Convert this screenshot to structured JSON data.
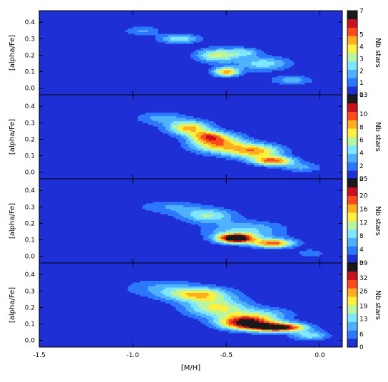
{
  "chart_data": {
    "type": "contour",
    "xlabel": "[M/H]",
    "ylabel": "[alpha/Fe]",
    "colorbar_label": "Nb stars",
    "xlim": [
      -1.5,
      0.12
    ],
    "ylim": [
      -0.04,
      0.47
    ],
    "xticks": [
      "-1.5",
      "-1.0",
      "-0.5",
      "0.0"
    ],
    "xtick_values": [
      -1.5,
      -1.0,
      -0.5,
      0.0
    ],
    "yticks": [
      "0.0",
      "0.1",
      "0.2",
      "0.3",
      "0.4"
    ],
    "ytick_values": [
      0.0,
      0.1,
      0.2,
      0.3,
      0.4
    ],
    "panels": [
      {
        "colorbar_ticks": [
          "7",
          "5",
          "4",
          "3",
          "2",
          "1",
          "0"
        ],
        "colorbar_tick_values": [
          7,
          5,
          4,
          3,
          2,
          1,
          0
        ],
        "colorbar_max": 7,
        "components": [
          {
            "mh": -0.95,
            "af": 0.35,
            "smh": 0.07,
            "saf": 0.02,
            "amp": 1.5
          },
          {
            "mh": -0.75,
            "af": 0.3,
            "smh": 0.08,
            "saf": 0.02,
            "amp": 2.5
          },
          {
            "mh": -0.55,
            "af": 0.2,
            "smh": 0.08,
            "saf": 0.03,
            "amp": 3.5
          },
          {
            "mh": -0.5,
            "af": 0.1,
            "smh": 0.05,
            "saf": 0.02,
            "amp": 4.5
          },
          {
            "mh": -0.3,
            "af": 0.15,
            "smh": 0.1,
            "saf": 0.03,
            "amp": 2.5
          },
          {
            "mh": -0.15,
            "af": 0.05,
            "smh": 0.08,
            "saf": 0.02,
            "amp": 1.8
          },
          {
            "mh": -0.4,
            "af": 0.22,
            "smh": 0.06,
            "saf": 0.02,
            "amp": 2.0
          }
        ]
      },
      {
        "colorbar_ticks": [
          "13",
          "10",
          "8",
          "6",
          "4",
          "2",
          "0"
        ],
        "colorbar_tick_values": [
          13,
          10,
          8,
          6,
          4,
          2,
          0
        ],
        "colorbar_max": 13,
        "components": [
          {
            "mh": -0.85,
            "af": 0.33,
            "smh": 0.1,
            "saf": 0.03,
            "amp": 3.0
          },
          {
            "mh": -0.7,
            "af": 0.27,
            "smh": 0.08,
            "saf": 0.03,
            "amp": 8.0
          },
          {
            "mh": -0.55,
            "af": 0.18,
            "smh": 0.1,
            "saf": 0.04,
            "amp": 9.0
          },
          {
            "mh": -0.35,
            "af": 0.13,
            "smh": 0.1,
            "saf": 0.03,
            "amp": 8.5
          },
          {
            "mh": -0.25,
            "af": 0.07,
            "smh": 0.08,
            "saf": 0.02,
            "amp": 9.5
          },
          {
            "mh": -0.1,
            "af": 0.03,
            "smh": 0.08,
            "saf": 0.02,
            "amp": 3.0
          },
          {
            "mh": -0.6,
            "af": 0.22,
            "smh": 0.06,
            "saf": 0.02,
            "amp": 5.0
          }
        ]
      },
      {
        "colorbar_ticks": [
          "25",
          "20",
          "16",
          "12",
          "8",
          "4",
          "0"
        ],
        "colorbar_tick_values": [
          25,
          20,
          16,
          12,
          8,
          4,
          0
        ],
        "colorbar_max": 25,
        "components": [
          {
            "mh": -0.8,
            "af": 0.3,
            "smh": 0.12,
            "saf": 0.03,
            "amp": 5.0
          },
          {
            "mh": -0.6,
            "af": 0.25,
            "smh": 0.1,
            "saf": 0.03,
            "amp": 10.0
          },
          {
            "mh": -0.45,
            "af": 0.11,
            "smh": 0.07,
            "saf": 0.02,
            "amp": 26.0
          },
          {
            "mh": -0.25,
            "af": 0.08,
            "smh": 0.08,
            "saf": 0.02,
            "amp": 18.0
          },
          {
            "mh": -0.4,
            "af": 0.16,
            "smh": 0.15,
            "saf": 0.04,
            "amp": 8.0
          },
          {
            "mh": -0.05,
            "af": 0.02,
            "smh": 0.06,
            "saf": 0.02,
            "amp": 4.0
          }
        ]
      },
      {
        "colorbar_ticks": [
          "39",
          "32",
          "26",
          "19",
          "13",
          "6",
          "0"
        ],
        "colorbar_tick_values": [
          39,
          32,
          26,
          19,
          13,
          6,
          0
        ],
        "colorbar_max": 39,
        "components": [
          {
            "mh": -0.85,
            "af": 0.32,
            "smh": 0.15,
            "saf": 0.04,
            "amp": 8.0
          },
          {
            "mh": -0.65,
            "af": 0.28,
            "smh": 0.12,
            "saf": 0.03,
            "amp": 22.0
          },
          {
            "mh": -0.55,
            "af": 0.2,
            "smh": 0.12,
            "saf": 0.04,
            "amp": 20.0
          },
          {
            "mh": -0.4,
            "af": 0.11,
            "smh": 0.1,
            "saf": 0.03,
            "amp": 36.0
          },
          {
            "mh": -0.22,
            "af": 0.08,
            "smh": 0.1,
            "saf": 0.02,
            "amp": 40.0
          },
          {
            "mh": -0.05,
            "af": 0.03,
            "smh": 0.07,
            "saf": 0.02,
            "amp": 14.0
          },
          {
            "mh": -0.3,
            "af": 0.16,
            "smh": 0.12,
            "saf": 0.03,
            "amp": 10.0
          }
        ]
      }
    ]
  }
}
